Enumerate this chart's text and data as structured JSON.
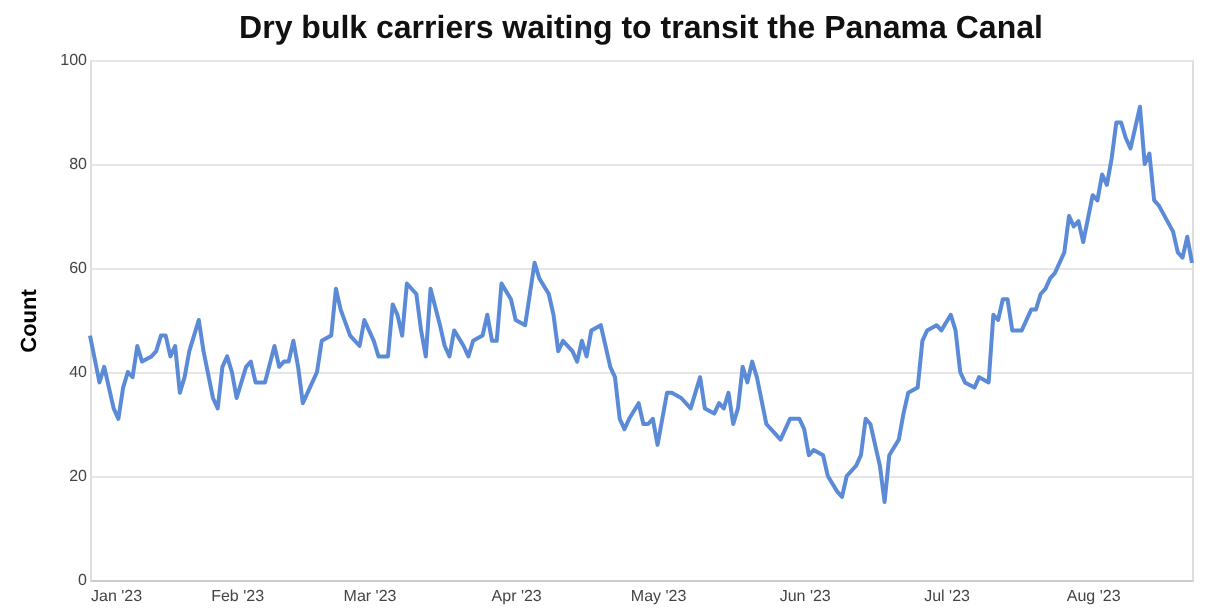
{
  "chart_data": {
    "type": "line",
    "title": "Dry bulk carriers waiting to transit the Panama Canal",
    "ylabel": "Count",
    "x": [
      "2023-01-01",
      "2023-01-03",
      "2023-01-04",
      "2023-01-06",
      "2023-01-07",
      "2023-01-08",
      "2023-01-09",
      "2023-01-10",
      "2023-01-11",
      "2023-01-12",
      "2023-01-14",
      "2023-01-15",
      "2023-01-16",
      "2023-01-17",
      "2023-01-18",
      "2023-01-19",
      "2023-01-20",
      "2023-01-21",
      "2023-01-22",
      "2023-01-24",
      "2023-01-25",
      "2023-01-27",
      "2023-01-28",
      "2023-01-29",
      "2023-01-30",
      "2023-01-31",
      "2023-02-01",
      "2023-02-02",
      "2023-02-03",
      "2023-02-04",
      "2023-02-05",
      "2023-02-07",
      "2023-02-09",
      "2023-02-10",
      "2023-02-11",
      "2023-02-12",
      "2023-02-13",
      "2023-02-14",
      "2023-02-15",
      "2023-02-17",
      "2023-02-18",
      "2023-02-19",
      "2023-02-21",
      "2023-02-22",
      "2023-02-23",
      "2023-02-25",
      "2023-02-27",
      "2023-02-28",
      "2023-03-02",
      "2023-03-03",
      "2023-03-05",
      "2023-03-06",
      "2023-03-07",
      "2023-03-08",
      "2023-03-09",
      "2023-03-11",
      "2023-03-12",
      "2023-03-13",
      "2023-03-14",
      "2023-03-16",
      "2023-03-17",
      "2023-03-18",
      "2023-03-19",
      "2023-03-21",
      "2023-03-22",
      "2023-03-23",
      "2023-03-25",
      "2023-03-26",
      "2023-03-27",
      "2023-03-28",
      "2023-03-29",
      "2023-03-31",
      "2023-04-01",
      "2023-04-03",
      "2023-04-04",
      "2023-04-05",
      "2023-04-06",
      "2023-04-08",
      "2023-04-09",
      "2023-04-10",
      "2023-04-11",
      "2023-04-13",
      "2023-04-14",
      "2023-04-15",
      "2023-04-16",
      "2023-04-17",
      "2023-04-19",
      "2023-04-21",
      "2023-04-22",
      "2023-04-23",
      "2023-04-24",
      "2023-04-25",
      "2023-04-27",
      "2023-04-28",
      "2023-04-29",
      "2023-04-30",
      "2023-05-01",
      "2023-05-03",
      "2023-05-04",
      "2023-05-06",
      "2023-05-08",
      "2023-05-10",
      "2023-05-11",
      "2023-05-13",
      "2023-05-14",
      "2023-05-15",
      "2023-05-16",
      "2023-05-17",
      "2023-05-18",
      "2023-05-19",
      "2023-05-20",
      "2023-05-21",
      "2023-05-22",
      "2023-05-24",
      "2023-05-26",
      "2023-05-27",
      "2023-05-29",
      "2023-05-31",
      "2023-06-01",
      "2023-06-02",
      "2023-06-03",
      "2023-06-05",
      "2023-06-06",
      "2023-06-08",
      "2023-06-09",
      "2023-06-10",
      "2023-06-12",
      "2023-06-13",
      "2023-06-14",
      "2023-06-15",
      "2023-06-17",
      "2023-06-18",
      "2023-06-19",
      "2023-06-21",
      "2023-06-22",
      "2023-06-23",
      "2023-06-25",
      "2023-06-26",
      "2023-06-27",
      "2023-06-29",
      "2023-06-30",
      "2023-07-02",
      "2023-07-03",
      "2023-07-04",
      "2023-07-05",
      "2023-07-07",
      "2023-07-08",
      "2023-07-10",
      "2023-07-11",
      "2023-07-12",
      "2023-07-13",
      "2023-07-14",
      "2023-07-15",
      "2023-07-17",
      "2023-07-19",
      "2023-07-20",
      "2023-07-21",
      "2023-07-22",
      "2023-07-23",
      "2023-07-24",
      "2023-07-26",
      "2023-07-27",
      "2023-07-28",
      "2023-07-29",
      "2023-07-30",
      "2023-08-01",
      "2023-08-02",
      "2023-08-03",
      "2023-08-04",
      "2023-08-05",
      "2023-08-06",
      "2023-08-07",
      "2023-08-08",
      "2023-08-09",
      "2023-08-11",
      "2023-08-12",
      "2023-08-13",
      "2023-08-14",
      "2023-08-15",
      "2023-08-18",
      "2023-08-19",
      "2023-08-20",
      "2023-08-21",
      "2023-08-22"
    ],
    "series": [
      {
        "color": "#5b8ad6",
        "values": [
          47,
          38,
          41,
          33,
          31,
          37,
          40,
          39,
          45,
          42,
          43,
          44,
          47,
          47,
          43,
          45,
          36,
          39,
          44,
          50,
          44,
          35,
          33,
          41,
          43,
          40,
          35,
          38,
          41,
          42,
          38,
          38,
          45,
          41,
          42,
          42,
          46,
          41,
          34,
          38,
          40,
          46,
          47,
          56,
          52,
          47,
          45,
          50,
          46,
          43,
          43,
          53,
          51,
          47,
          57,
          55,
          48,
          43,
          56,
          49,
          45,
          43,
          48,
          45,
          43,
          46,
          47,
          51,
          46,
          46,
          57,
          54,
          50,
          49,
          55,
          61,
          58,
          55,
          51,
          44,
          46,
          44,
          42,
          46,
          43,
          48,
          49,
          41,
          39,
          31,
          29,
          31,
          34,
          30,
          30,
          31,
          26,
          36,
          36,
          35,
          33,
          39,
          33,
          32,
          34,
          33,
          36,
          30,
          33,
          41,
          38,
          42,
          39,
          30,
          28,
          27,
          31,
          31,
          29,
          24,
          25,
          24,
          20,
          17,
          16,
          20,
          22,
          24,
          31,
          30,
          22,
          15,
          24,
          27,
          32,
          36,
          37,
          46,
          48,
          49,
          48,
          51,
          48,
          40,
          38,
          37,
          39,
          38,
          51,
          50,
          54,
          54,
          48,
          48,
          52,
          52,
          55,
          56,
          58,
          59,
          63,
          70,
          68,
          69,
          65,
          74,
          73,
          78,
          76,
          81,
          88,
          88,
          85,
          83,
          91,
          80,
          82,
          73,
          72,
          67,
          63,
          62,
          66,
          61
        ]
      }
    ],
    "xlim": [
      "2023-01-01",
      "2023-08-22"
    ],
    "xticks": [
      {
        "value": "2023-01-01",
        "label": "Jan '23"
      },
      {
        "value": "2023-02-01",
        "label": "Feb '23"
      },
      {
        "value": "2023-03-01",
        "label": "Mar '23"
      },
      {
        "value": "2023-04-01",
        "label": "Apr '23"
      },
      {
        "value": "2023-05-01",
        "label": "May '23"
      },
      {
        "value": "2023-06-01",
        "label": "Jun '23"
      },
      {
        "value": "2023-07-01",
        "label": "Jul '23"
      },
      {
        "value": "2023-08-01",
        "label": "Aug '23"
      }
    ],
    "ylim": [
      0,
      100
    ],
    "yticks": [
      0,
      20,
      40,
      60,
      80,
      100
    ],
    "grid": "y",
    "marker": "none",
    "line_style": "solid"
  }
}
